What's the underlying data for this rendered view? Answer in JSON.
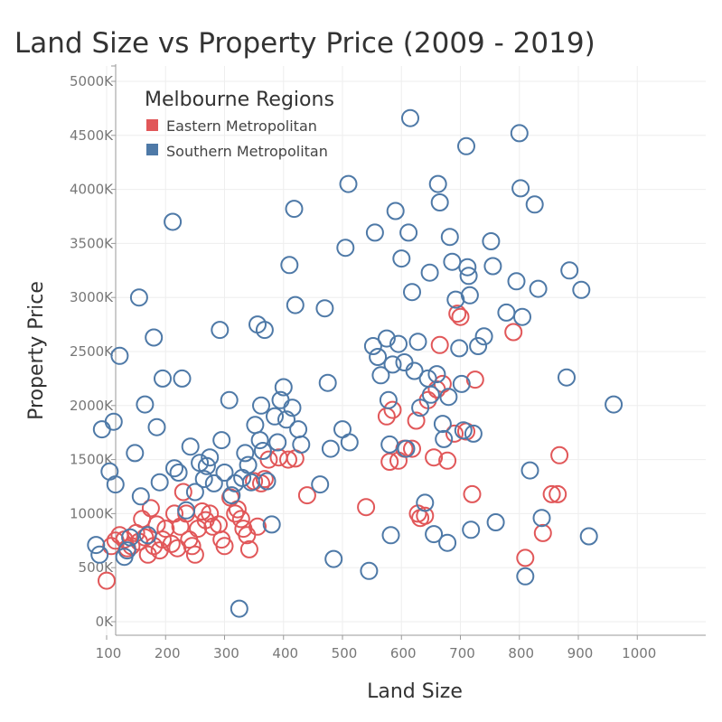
{
  "chart_data": {
    "type": "scatter",
    "title": "Land Size vs Property Price (2009 - 2019)",
    "xlabel": "Land Size",
    "ylabel": "Property Price",
    "xlim": [
      0,
      1050
    ],
    "ylim": [
      -150,
      5100
    ],
    "x_ticks": [
      100,
      200,
      300,
      400,
      500,
      600,
      700,
      800,
      900,
      1000
    ],
    "x_tick_labels": [
      "100",
      "200",
      "300",
      "400",
      "500",
      "600",
      "700",
      "800",
      "900",
      "1000"
    ],
    "y_ticks": [
      0,
      500,
      1000,
      1500,
      2000,
      2500,
      3000,
      3500,
      4000,
      4500,
      5000
    ],
    "y_tick_labels": [
      "0K",
      "500K",
      "1000K",
      "1500K",
      "2000K",
      "2500K",
      "3000K",
      "3500K",
      "4000K",
      "4500K",
      "5000K"
    ],
    "grid": true,
    "legend": {
      "title": "Melbourne Regions",
      "position": "top-left",
      "entries": [
        {
          "label": "Eastern Metropolitan",
          "color": "#e15759"
        },
        {
          "label": "Southern Metropolitan",
          "color": "#4e79a7"
        }
      ]
    },
    "series": [
      {
        "name": "Eastern Metropolitan",
        "color": "#e15759",
        "points": [
          [
            100,
            380
          ],
          [
            108,
            700
          ],
          [
            115,
            750
          ],
          [
            122,
            800
          ],
          [
            130,
            760
          ],
          [
            135,
            680
          ],
          [
            142,
            700
          ],
          [
            150,
            820
          ],
          [
            155,
            740
          ],
          [
            160,
            950
          ],
          [
            165,
            780
          ],
          [
            170,
            620
          ],
          [
            175,
            1050
          ],
          [
            180,
            700
          ],
          [
            185,
            900
          ],
          [
            190,
            660
          ],
          [
            195,
            760
          ],
          [
            200,
            860
          ],
          [
            210,
            720
          ],
          [
            215,
            1000
          ],
          [
            220,
            680
          ],
          [
            225,
            880
          ],
          [
            230,
            1200
          ],
          [
            235,
            1000
          ],
          [
            240,
            760
          ],
          [
            245,
            700
          ],
          [
            250,
            620
          ],
          [
            255,
            860
          ],
          [
            262,
            1020
          ],
          [
            268,
            940
          ],
          [
            275,
            1000
          ],
          [
            280,
            880
          ],
          [
            290,
            900
          ],
          [
            295,
            760
          ],
          [
            300,
            700
          ],
          [
            310,
            1150
          ],
          [
            318,
            1000
          ],
          [
            322,
            1040
          ],
          [
            328,
            950
          ],
          [
            332,
            860
          ],
          [
            338,
            800
          ],
          [
            342,
            670
          ],
          [
            350,
            1300
          ],
          [
            356,
            880
          ],
          [
            362,
            1280
          ],
          [
            368,
            1320
          ],
          [
            375,
            1500
          ],
          [
            392,
            1520
          ],
          [
            408,
            1500
          ],
          [
            420,
            1510
          ],
          [
            440,
            1170
          ],
          [
            540,
            1060
          ],
          [
            575,
            1900
          ],
          [
            580,
            1480
          ],
          [
            585,
            1960
          ],
          [
            595,
            1490
          ],
          [
            605,
            1600
          ],
          [
            618,
            1600
          ],
          [
            625,
            1860
          ],
          [
            628,
            1000
          ],
          [
            632,
            960
          ],
          [
            640,
            980
          ],
          [
            645,
            2050
          ],
          [
            655,
            1520
          ],
          [
            660,
            2150
          ],
          [
            665,
            2560
          ],
          [
            670,
            2200
          ],
          [
            678,
            1490
          ],
          [
            690,
            1740
          ],
          [
            695,
            2850
          ],
          [
            700,
            2820
          ],
          [
            710,
            1760
          ],
          [
            720,
            1180
          ],
          [
            725,
            2240
          ],
          [
            790,
            2680
          ],
          [
            810,
            590
          ],
          [
            840,
            820
          ],
          [
            855,
            1180
          ],
          [
            865,
            1180
          ],
          [
            868,
            1540
          ]
        ]
      },
      {
        "name": "Southern Metropolitan",
        "color": "#4e79a7",
        "points": [
          [
            82,
            710
          ],
          [
            88,
            620
          ],
          [
            92,
            1780
          ],
          [
            105,
            1390
          ],
          [
            112,
            1850
          ],
          [
            115,
            1270
          ],
          [
            122,
            2460
          ],
          [
            130,
            600
          ],
          [
            135,
            660
          ],
          [
            140,
            780
          ],
          [
            148,
            1560
          ],
          [
            155,
            3000
          ],
          [
            158,
            1160
          ],
          [
            165,
            2010
          ],
          [
            170,
            800
          ],
          [
            180,
            2630
          ],
          [
            185,
            1800
          ],
          [
            190,
            1290
          ],
          [
            195,
            2250
          ],
          [
            212,
            3700
          ],
          [
            215,
            1420
          ],
          [
            222,
            1380
          ],
          [
            228,
            2250
          ],
          [
            235,
            1030
          ],
          [
            242,
            1620
          ],
          [
            250,
            1200
          ],
          [
            258,
            1470
          ],
          [
            265,
            1320
          ],
          [
            270,
            1440
          ],
          [
            275,
            1520
          ],
          [
            282,
            1280
          ],
          [
            292,
            2700
          ],
          [
            295,
            1680
          ],
          [
            300,
            1380
          ],
          [
            308,
            2050
          ],
          [
            312,
            1170
          ],
          [
            318,
            1280
          ],
          [
            325,
            120
          ],
          [
            330,
            1330
          ],
          [
            335,
            1560
          ],
          [
            340,
            1450
          ],
          [
            345,
            1290
          ],
          [
            352,
            1820
          ],
          [
            356,
            2750
          ],
          [
            360,
            1680
          ],
          [
            362,
            2000
          ],
          [
            365,
            1580
          ],
          [
            368,
            2700
          ],
          [
            372,
            1300
          ],
          [
            380,
            900
          ],
          [
            385,
            1900
          ],
          [
            390,
            1660
          ],
          [
            395,
            2050
          ],
          [
            400,
            2170
          ],
          [
            405,
            1870
          ],
          [
            410,
            3300
          ],
          [
            415,
            1980
          ],
          [
            418,
            3820
          ],
          [
            420,
            2930
          ],
          [
            425,
            1780
          ],
          [
            430,
            1640
          ],
          [
            462,
            1270
          ],
          [
            470,
            2900
          ],
          [
            475,
            2210
          ],
          [
            480,
            1600
          ],
          [
            485,
            580
          ],
          [
            500,
            1780
          ],
          [
            505,
            3460
          ],
          [
            510,
            4050
          ],
          [
            512,
            1660
          ],
          [
            545,
            470
          ],
          [
            552,
            2550
          ],
          [
            555,
            3600
          ],
          [
            560,
            2450
          ],
          [
            565,
            2280
          ],
          [
            575,
            2620
          ],
          [
            578,
            2050
          ],
          [
            580,
            1640
          ],
          [
            582,
            800
          ],
          [
            585,
            2380
          ],
          [
            590,
            3800
          ],
          [
            595,
            2570
          ],
          [
            600,
            3360
          ],
          [
            605,
            2400
          ],
          [
            608,
            1600
          ],
          [
            612,
            3600
          ],
          [
            615,
            4660
          ],
          [
            618,
            3050
          ],
          [
            622,
            2320
          ],
          [
            628,
            2590
          ],
          [
            632,
            1980
          ],
          [
            640,
            1100
          ],
          [
            645,
            2250
          ],
          [
            648,
            3230
          ],
          [
            650,
            2100
          ],
          [
            655,
            810
          ],
          [
            660,
            2290
          ],
          [
            662,
            4050
          ],
          [
            665,
            3880
          ],
          [
            670,
            1830
          ],
          [
            672,
            1690
          ],
          [
            678,
            730
          ],
          [
            680,
            2080
          ],
          [
            682,
            3560
          ],
          [
            686,
            3330
          ],
          [
            692,
            2980
          ],
          [
            698,
            2530
          ],
          [
            702,
            2200
          ],
          [
            705,
            1770
          ],
          [
            710,
            4400
          ],
          [
            712,
            3280
          ],
          [
            714,
            3200
          ],
          [
            716,
            3020
          ],
          [
            718,
            850
          ],
          [
            722,
            1740
          ],
          [
            730,
            2550
          ],
          [
            740,
            2640
          ],
          [
            752,
            3520
          ],
          [
            755,
            3290
          ],
          [
            760,
            920
          ],
          [
            778,
            2860
          ],
          [
            795,
            3150
          ],
          [
            800,
            4520
          ],
          [
            802,
            4010
          ],
          [
            805,
            2820
          ],
          [
            810,
            420
          ],
          [
            818,
            1400
          ],
          [
            826,
            3860
          ],
          [
            832,
            3080
          ],
          [
            838,
            960
          ],
          [
            880,
            2260
          ],
          [
            885,
            3250
          ],
          [
            905,
            3070
          ],
          [
            918,
            790
          ],
          [
            960,
            2010
          ]
        ]
      }
    ]
  }
}
